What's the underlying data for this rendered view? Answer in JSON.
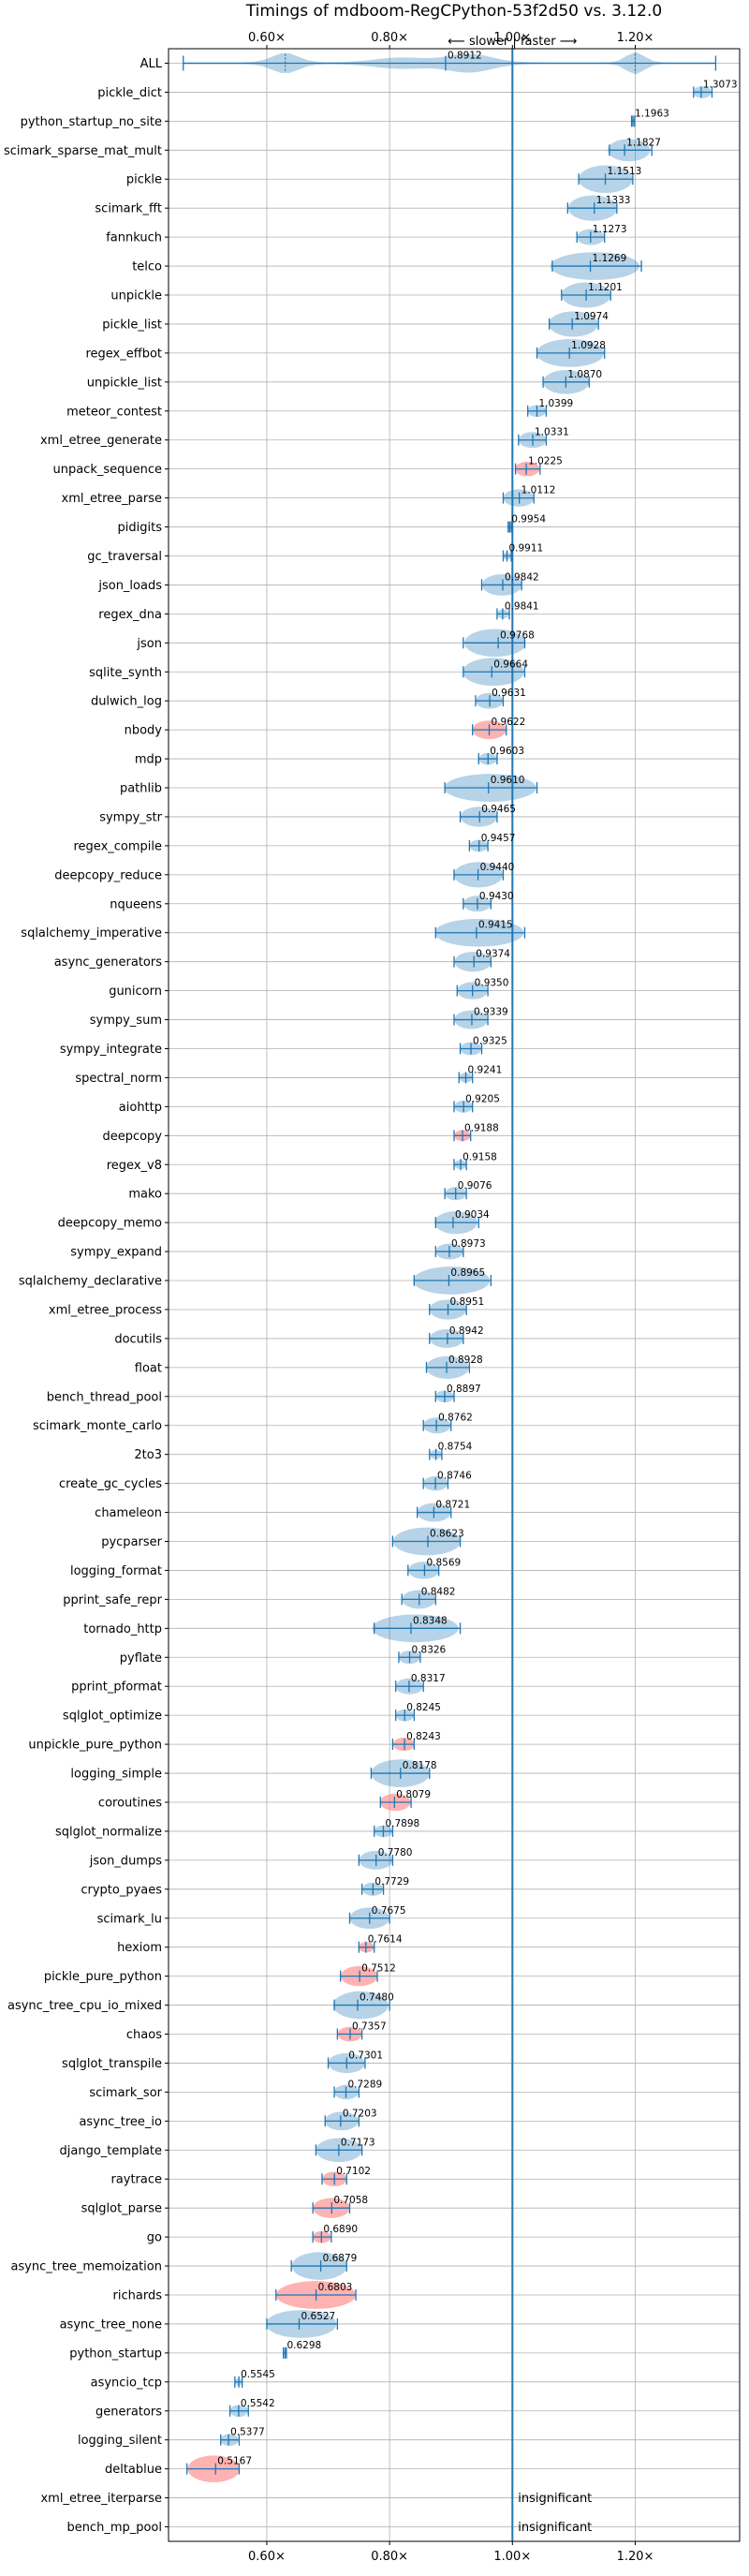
{
  "chart_data": {
    "type": "violin",
    "title": "Timings of mdboom-RegCPython-53f2d50 vs. 3.12.0",
    "direction_note": "⟵ slower | faster ⟶",
    "xlim": [
      0.44,
      1.37
    ],
    "xticks": [
      0.6,
      0.8,
      1.0,
      1.2
    ],
    "xtick_labels": [
      "0.60×",
      "0.80×",
      "1.00×",
      "1.20×"
    ],
    "grid": true,
    "colors": {
      "faster": "#1f77b4",
      "slower": "#ff7f7f",
      "reference": "#1f77b4"
    },
    "benchmarks": [
      {
        "name": "ALL",
        "value": 0.8912,
        "lo": 0.464,
        "hi": 1.331,
        "slower": false
      },
      {
        "name": "pickle_dict",
        "value": 1.3073,
        "lo": 1.295,
        "hi": 1.325,
        "slower": false
      },
      {
        "name": "python_startup_no_site",
        "value": 1.1963,
        "lo": 1.194,
        "hi": 1.199,
        "slower": false
      },
      {
        "name": "scimark_sparse_mat_mult",
        "value": 1.1827,
        "lo": 1.158,
        "hi": 1.227,
        "slower": false
      },
      {
        "name": "pickle",
        "value": 1.1513,
        "lo": 1.108,
        "hi": 1.196,
        "slower": false
      },
      {
        "name": "scimark_fft",
        "value": 1.1333,
        "lo": 1.09,
        "hi": 1.17,
        "slower": false
      },
      {
        "name": "fannkuch",
        "value": 1.1273,
        "lo": 1.105,
        "hi": 1.15,
        "slower": false
      },
      {
        "name": "telco",
        "value": 1.1269,
        "lo": 1.065,
        "hi": 1.21,
        "slower": false
      },
      {
        "name": "unpickle",
        "value": 1.1201,
        "lo": 1.08,
        "hi": 1.16,
        "slower": false
      },
      {
        "name": "pickle_list",
        "value": 1.0974,
        "lo": 1.06,
        "hi": 1.14,
        "slower": false
      },
      {
        "name": "regex_effbot",
        "value": 1.0928,
        "lo": 1.04,
        "hi": 1.15,
        "slower": false
      },
      {
        "name": "unpickle_list",
        "value": 1.087,
        "lo": 1.05,
        "hi": 1.125,
        "slower": false
      },
      {
        "name": "meteor_contest",
        "value": 1.0399,
        "lo": 1.025,
        "hi": 1.055,
        "slower": false
      },
      {
        "name": "xml_etree_generate",
        "value": 1.0331,
        "lo": 1.01,
        "hi": 1.055,
        "slower": false
      },
      {
        "name": "unpack_sequence",
        "value": 1.0225,
        "lo": 1.005,
        "hi": 1.045,
        "slower": true
      },
      {
        "name": "xml_etree_parse",
        "value": 1.0112,
        "lo": 0.985,
        "hi": 1.035,
        "slower": false
      },
      {
        "name": "pidigits",
        "value": 0.9954,
        "lo": 0.993,
        "hi": 0.998,
        "slower": false
      },
      {
        "name": "gc_traversal",
        "value": 0.9911,
        "lo": 0.985,
        "hi": 0.998,
        "slower": false
      },
      {
        "name": "json_loads",
        "value": 0.9842,
        "lo": 0.95,
        "hi": 1.015,
        "slower": false
      },
      {
        "name": "regex_dna",
        "value": 0.9841,
        "lo": 0.975,
        "hi": 0.995,
        "slower": false
      },
      {
        "name": "json",
        "value": 0.9768,
        "lo": 0.92,
        "hi": 1.02,
        "slower": false
      },
      {
        "name": "sqlite_synth",
        "value": 0.9664,
        "lo": 0.92,
        "hi": 1.02,
        "slower": false
      },
      {
        "name": "dulwich_log",
        "value": 0.9631,
        "lo": 0.94,
        "hi": 0.985,
        "slower": false
      },
      {
        "name": "nbody",
        "value": 0.9622,
        "lo": 0.935,
        "hi": 0.99,
        "slower": true
      },
      {
        "name": "mdp",
        "value": 0.9603,
        "lo": 0.945,
        "hi": 0.975,
        "slower": false
      },
      {
        "name": "pathlib",
        "value": 0.961,
        "lo": 0.89,
        "hi": 1.04,
        "slower": false
      },
      {
        "name": "sympy_str",
        "value": 0.9465,
        "lo": 0.915,
        "hi": 0.975,
        "slower": false
      },
      {
        "name": "regex_compile",
        "value": 0.9457,
        "lo": 0.93,
        "hi": 0.96,
        "slower": false
      },
      {
        "name": "deepcopy_reduce",
        "value": 0.944,
        "lo": 0.905,
        "hi": 0.985,
        "slower": false
      },
      {
        "name": "nqueens",
        "value": 0.943,
        "lo": 0.92,
        "hi": 0.965,
        "slower": false
      },
      {
        "name": "sqlalchemy_imperative",
        "value": 0.9415,
        "lo": 0.875,
        "hi": 1.02,
        "slower": false
      },
      {
        "name": "async_generators",
        "value": 0.9374,
        "lo": 0.905,
        "hi": 0.965,
        "slower": false
      },
      {
        "name": "gunicorn",
        "value": 0.935,
        "lo": 0.91,
        "hi": 0.96,
        "slower": false
      },
      {
        "name": "sympy_sum",
        "value": 0.9339,
        "lo": 0.905,
        "hi": 0.96,
        "slower": false
      },
      {
        "name": "sympy_integrate",
        "value": 0.9325,
        "lo": 0.915,
        "hi": 0.95,
        "slower": false
      },
      {
        "name": "spectral_norm",
        "value": 0.9241,
        "lo": 0.913,
        "hi": 0.935,
        "slower": false
      },
      {
        "name": "aiohttp",
        "value": 0.9205,
        "lo": 0.905,
        "hi": 0.935,
        "slower": false
      },
      {
        "name": "deepcopy",
        "value": 0.9188,
        "lo": 0.905,
        "hi": 0.932,
        "slower": true
      },
      {
        "name": "regex_v8",
        "value": 0.9158,
        "lo": 0.905,
        "hi": 0.925,
        "slower": false
      },
      {
        "name": "mako",
        "value": 0.9076,
        "lo": 0.89,
        "hi": 0.925,
        "slower": false
      },
      {
        "name": "deepcopy_memo",
        "value": 0.9034,
        "lo": 0.875,
        "hi": 0.945,
        "slower": false
      },
      {
        "name": "sympy_expand",
        "value": 0.8973,
        "lo": 0.875,
        "hi": 0.92,
        "slower": false
      },
      {
        "name": "sqlalchemy_declarative",
        "value": 0.8965,
        "lo": 0.84,
        "hi": 0.965,
        "slower": false
      },
      {
        "name": "xml_etree_process",
        "value": 0.8951,
        "lo": 0.865,
        "hi": 0.925,
        "slower": false
      },
      {
        "name": "docutils",
        "value": 0.8942,
        "lo": 0.865,
        "hi": 0.92,
        "slower": false
      },
      {
        "name": "float",
        "value": 0.8928,
        "lo": 0.86,
        "hi": 0.93,
        "slower": false
      },
      {
        "name": "bench_thread_pool",
        "value": 0.8897,
        "lo": 0.875,
        "hi": 0.905,
        "slower": false
      },
      {
        "name": "scimark_monte_carlo",
        "value": 0.8762,
        "lo": 0.855,
        "hi": 0.9,
        "slower": false
      },
      {
        "name": "2to3",
        "value": 0.8754,
        "lo": 0.865,
        "hi": 0.885,
        "slower": false
      },
      {
        "name": "create_gc_cycles",
        "value": 0.8746,
        "lo": 0.855,
        "hi": 0.895,
        "slower": false
      },
      {
        "name": "chameleon",
        "value": 0.8721,
        "lo": 0.845,
        "hi": 0.9,
        "slower": false
      },
      {
        "name": "pycparser",
        "value": 0.8623,
        "lo": 0.805,
        "hi": 0.915,
        "slower": false
      },
      {
        "name": "logging_format",
        "value": 0.8569,
        "lo": 0.83,
        "hi": 0.88,
        "slower": false
      },
      {
        "name": "pprint_safe_repr",
        "value": 0.8482,
        "lo": 0.82,
        "hi": 0.875,
        "slower": false
      },
      {
        "name": "tornado_http",
        "value": 0.8348,
        "lo": 0.775,
        "hi": 0.915,
        "slower": false
      },
      {
        "name": "pyflate",
        "value": 0.8326,
        "lo": 0.815,
        "hi": 0.85,
        "slower": false
      },
      {
        "name": "pprint_pformat",
        "value": 0.8317,
        "lo": 0.81,
        "hi": 0.855,
        "slower": false
      },
      {
        "name": "sqlglot_optimize",
        "value": 0.8245,
        "lo": 0.81,
        "hi": 0.84,
        "slower": false
      },
      {
        "name": "unpickle_pure_python",
        "value": 0.8243,
        "lo": 0.805,
        "hi": 0.84,
        "slower": true
      },
      {
        "name": "logging_simple",
        "value": 0.8178,
        "lo": 0.77,
        "hi": 0.865,
        "slower": false
      },
      {
        "name": "coroutines",
        "value": 0.8079,
        "lo": 0.785,
        "hi": 0.835,
        "slower": true
      },
      {
        "name": "sqlglot_normalize",
        "value": 0.7898,
        "lo": 0.775,
        "hi": 0.805,
        "slower": false
      },
      {
        "name": "json_dumps",
        "value": 0.778,
        "lo": 0.75,
        "hi": 0.805,
        "slower": false
      },
      {
        "name": "crypto_pyaes",
        "value": 0.7729,
        "lo": 0.755,
        "hi": 0.79,
        "slower": false
      },
      {
        "name": "scimark_lu",
        "value": 0.7675,
        "lo": 0.735,
        "hi": 0.8,
        "slower": false
      },
      {
        "name": "hexiom",
        "value": 0.7614,
        "lo": 0.75,
        "hi": 0.775,
        "slower": true
      },
      {
        "name": "pickle_pure_python",
        "value": 0.7512,
        "lo": 0.72,
        "hi": 0.78,
        "slower": true
      },
      {
        "name": "async_tree_cpu_io_mixed",
        "value": 0.748,
        "lo": 0.71,
        "hi": 0.8,
        "slower": false
      },
      {
        "name": "chaos",
        "value": 0.7357,
        "lo": 0.715,
        "hi": 0.755,
        "slower": true
      },
      {
        "name": "sqlglot_transpile",
        "value": 0.7301,
        "lo": 0.7,
        "hi": 0.76,
        "slower": false
      },
      {
        "name": "scimark_sor",
        "value": 0.7289,
        "lo": 0.71,
        "hi": 0.75,
        "slower": false
      },
      {
        "name": "async_tree_io",
        "value": 0.7203,
        "lo": 0.695,
        "hi": 0.75,
        "slower": false
      },
      {
        "name": "django_template",
        "value": 0.7173,
        "lo": 0.68,
        "hi": 0.755,
        "slower": false
      },
      {
        "name": "raytrace",
        "value": 0.7102,
        "lo": 0.69,
        "hi": 0.73,
        "slower": true
      },
      {
        "name": "sqlglot_parse",
        "value": 0.7058,
        "lo": 0.675,
        "hi": 0.735,
        "slower": true
      },
      {
        "name": "go",
        "value": 0.689,
        "lo": 0.675,
        "hi": 0.705,
        "slower": true
      },
      {
        "name": "async_tree_memoization",
        "value": 0.6879,
        "lo": 0.64,
        "hi": 0.73,
        "slower": false
      },
      {
        "name": "richards",
        "value": 0.6803,
        "lo": 0.615,
        "hi": 0.745,
        "slower": true
      },
      {
        "name": "async_tree_none",
        "value": 0.6527,
        "lo": 0.6,
        "hi": 0.715,
        "slower": false
      },
      {
        "name": "python_startup",
        "value": 0.6298,
        "lo": 0.627,
        "hi": 0.632,
        "slower": false
      },
      {
        "name": "asyncio_tcp",
        "value": 0.5545,
        "lo": 0.548,
        "hi": 0.56,
        "slower": false
      },
      {
        "name": "generators",
        "value": 0.5542,
        "lo": 0.54,
        "hi": 0.57,
        "slower": false
      },
      {
        "name": "logging_silent",
        "value": 0.5377,
        "lo": 0.525,
        "hi": 0.555,
        "slower": false
      },
      {
        "name": "deltablue",
        "value": 0.5167,
        "lo": 0.47,
        "hi": 0.555,
        "slower": true
      },
      {
        "name": "xml_etree_iterparse",
        "value": null,
        "note": "insignificant"
      },
      {
        "name": "bench_mp_pool",
        "value": null,
        "note": "insignificant"
      }
    ]
  }
}
